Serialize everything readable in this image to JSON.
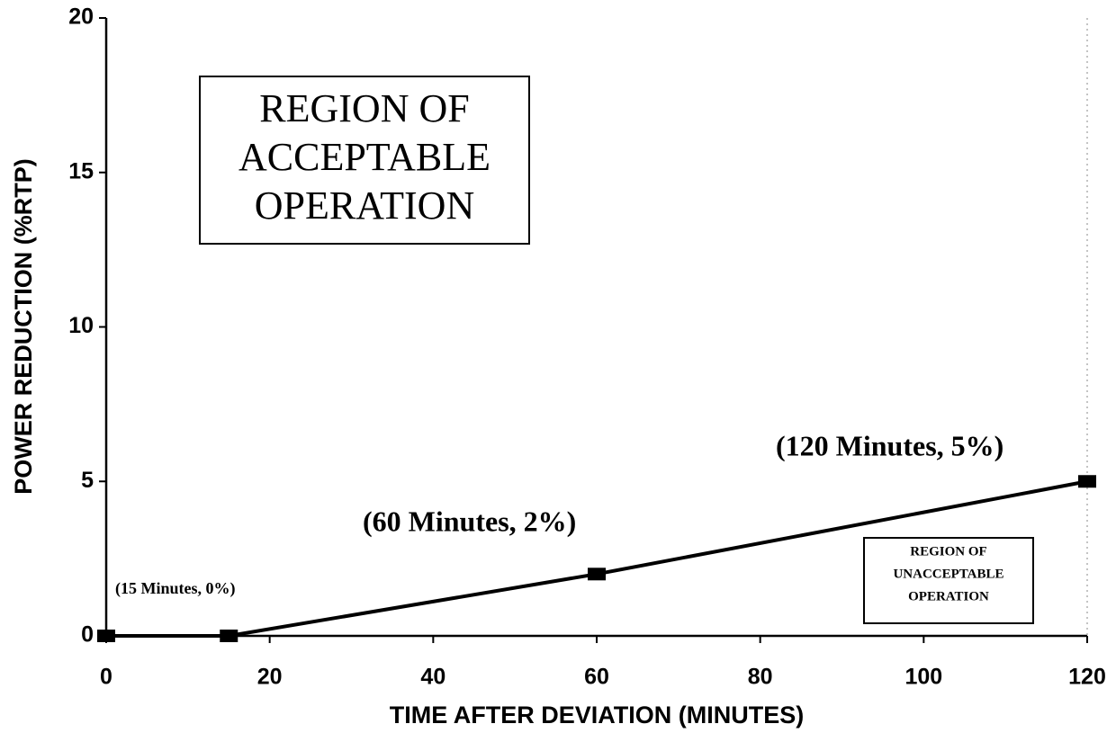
{
  "chart_data": {
    "type": "line",
    "x_label": "TIME AFTER DEVIATION (MINUTES)",
    "y_label": "POWER REDUCTION (%RTP)",
    "x": [
      0,
      15,
      60,
      120
    ],
    "series": [
      {
        "color": "#000000",
        "values": [
          0,
          0,
          2,
          5
        ]
      }
    ],
    "xlim": [
      0,
      120
    ],
    "xticks": [
      0,
      20,
      40,
      60,
      80,
      100,
      120
    ],
    "ylim": [
      0,
      20
    ],
    "yticks": [
      0,
      5,
      10,
      15,
      20
    ],
    "annotations": [
      "(15 Minutes, 0%)",
      "(60 Minutes, 2%)",
      "(120 Minutes, 5%)"
    ],
    "regions": [
      {
        "lines": [
          "REGION OF",
          "ACCEPTABLE",
          "OPERATION"
        ]
      },
      {
        "lines": [
          "REGION OF",
          "UNACCEPTABLE",
          "OPERATION"
        ]
      }
    ]
  }
}
